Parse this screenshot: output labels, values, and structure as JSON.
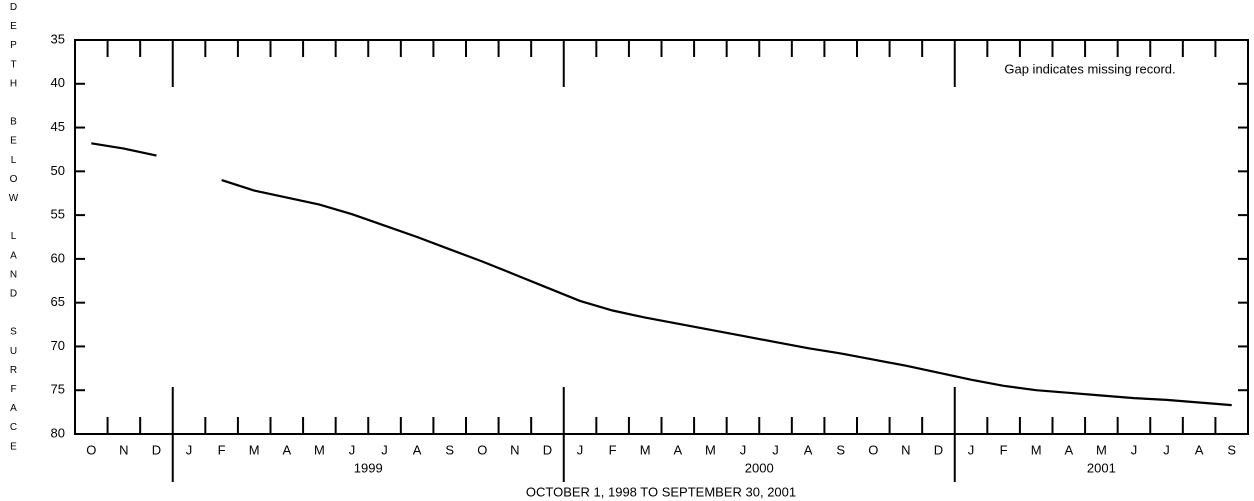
{
  "chart_data": {
    "type": "line",
    "y_label": "DEPTH BELOW LAND SURFACE",
    "x_label": "OCTOBER 1, 1998  TO  SEPTEMBER 30, 2001",
    "annotation": "Gap indicates missing record.",
    "categories": [
      "O",
      "N",
      "D",
      "J",
      "F",
      "M",
      "A",
      "M",
      "J",
      "J",
      "A",
      "S",
      "O",
      "N",
      "D",
      "J",
      "F",
      "M",
      "A",
      "M",
      "J",
      "J",
      "A",
      "S",
      "O",
      "N",
      "D",
      "J",
      "F",
      "M",
      "A",
      "M",
      "J",
      "J",
      "A",
      "S"
    ],
    "years": [
      "1999",
      "2000",
      "2001"
    ],
    "values": [
      46.8,
      47.4,
      48.2,
      null,
      51.0,
      52.2,
      53.0,
      53.8,
      54.9,
      56.2,
      57.5,
      58.9,
      60.3,
      61.8,
      63.3,
      64.8,
      65.9,
      66.7,
      67.4,
      68.1,
      68.8,
      69.5,
      70.2,
      70.8,
      71.5,
      72.2,
      73.0,
      73.8,
      74.5,
      75.0,
      75.3,
      75.6,
      75.9,
      76.1,
      76.4,
      76.7
    ],
    "color": "#000000",
    "ylim": [
      80,
      35
    ],
    "yticks": [
      35,
      40,
      45,
      50,
      55,
      60,
      65,
      70,
      75,
      80
    ],
    "grid": false
  }
}
